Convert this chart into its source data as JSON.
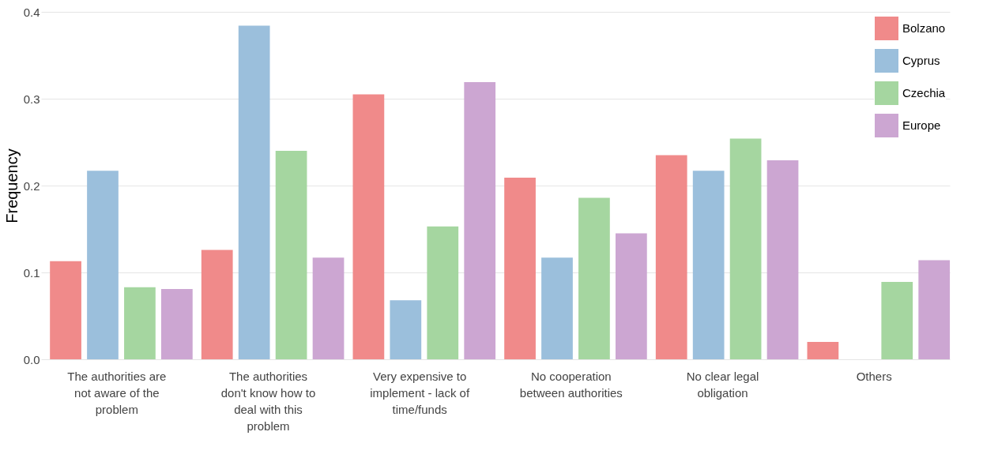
{
  "chart_data": {
    "type": "bar",
    "ylabel": "Frequency",
    "categories": [
      "The authorities are not aware of the problem",
      "The authorities don't know how to deal with this problem",
      "Very expensive to implement - lack of time/funds",
      "No cooperation between authorities",
      "No clear legal obligation",
      "Others"
    ],
    "series": [
      {
        "name": "Bolzano",
        "color": "#f08a8a",
        "values": [
          0.113,
          0.126,
          0.305,
          0.209,
          0.235,
          0.02
        ]
      },
      {
        "name": "Cyprus",
        "color": "#9bbfdc",
        "values": [
          0.217,
          0.384,
          0.068,
          0.117,
          0.217,
          0
        ]
      },
      {
        "name": "Czechia",
        "color": "#a5d6a0",
        "values": [
          0.083,
          0.24,
          0.153,
          0.186,
          0.254,
          0.089
        ]
      },
      {
        "name": "Europe",
        "color": "#cca6d2",
        "values": [
          0.081,
          0.117,
          0.319,
          0.145,
          0.229,
          0.114
        ]
      }
    ],
    "ylim": [
      0,
      0.4
    ],
    "yticks": [
      {
        "value": 0,
        "label": "0.0"
      },
      {
        "value": 0.1,
        "label": "0.1"
      },
      {
        "value": 0.2,
        "label": "0.2"
      },
      {
        "value": 0.3,
        "label": "0.3"
      },
      {
        "value": 0.4,
        "label": "0.4"
      }
    ],
    "grid": "y",
    "legend": "top right"
  }
}
